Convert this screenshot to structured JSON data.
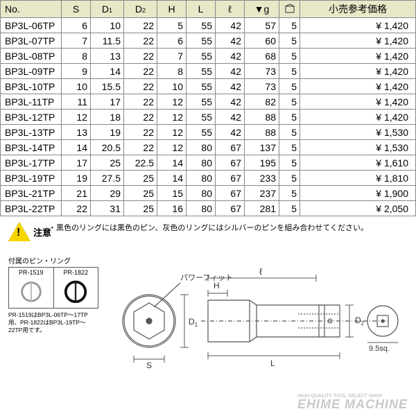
{
  "table": {
    "headers": [
      "No.",
      "S",
      "D1",
      "D2",
      "H",
      "L",
      "ℓ",
      "▼g",
      "pkg",
      "小売参考価格"
    ],
    "rows": [
      [
        "BP3L-06TP",
        "6",
        "10",
        "22",
        "5",
        "55",
        "42",
        "57",
        "5",
        "¥  1,420"
      ],
      [
        "BP3L-07TP",
        "7",
        "11.5",
        "22",
        "6",
        "55",
        "42",
        "60",
        "5",
        "¥  1,420"
      ],
      [
        "BP3L-08TP",
        "8",
        "13",
        "22",
        "7",
        "55",
        "42",
        "68",
        "5",
        "¥  1,420"
      ],
      [
        "BP3L-09TP",
        "9",
        "14",
        "22",
        "8",
        "55",
        "42",
        "73",
        "5",
        "¥  1,420"
      ],
      [
        "BP3L-10TP",
        "10",
        "15.5",
        "22",
        "10",
        "55",
        "42",
        "73",
        "5",
        "¥  1,420"
      ],
      [
        "BP3L-11TP",
        "11",
        "17",
        "22",
        "12",
        "55",
        "42",
        "82",
        "5",
        "¥  1,420"
      ],
      [
        "BP3L-12TP",
        "12",
        "18",
        "22",
        "12",
        "55",
        "42",
        "88",
        "5",
        "¥  1,420"
      ],
      [
        "BP3L-13TP",
        "13",
        "19",
        "22",
        "12",
        "55",
        "42",
        "88",
        "5",
        "¥  1,530"
      ],
      [
        "BP3L-14TP",
        "14",
        "20.5",
        "22",
        "12",
        "80",
        "67",
        "137",
        "5",
        "¥  1,530"
      ],
      [
        "BP3L-17TP",
        "17",
        "25",
        "22.5",
        "14",
        "80",
        "67",
        "195",
        "5",
        "¥  1,610"
      ],
      [
        "BP3L-19TP",
        "19",
        "27.5",
        "25",
        "14",
        "80",
        "67",
        "233",
        "5",
        "¥  1,810"
      ],
      [
        "BP3L-21TP",
        "21",
        "29",
        "25",
        "15",
        "80",
        "67",
        "237",
        "5",
        "¥  1,900"
      ],
      [
        "BP3L-22TP",
        "22",
        "31",
        "25",
        "16",
        "80",
        "67",
        "281",
        "5",
        "¥  2,050"
      ]
    ]
  },
  "notes": {
    "warn_label": "注意",
    "body": "・黒色のリングには黒色のピン、灰色のリングにはシルバーのピンを組み合わせてください。",
    "pinring_title": "付属のピン・リング",
    "pr1": "PR-1519",
    "pr2": "PR-1822",
    "pinring_note": "PR-1519はBP3L-06TP～17TP用、PR-1822はBP3L-19TP～22TP用です。"
  },
  "diagram": {
    "power_fit": "パワーフィット",
    "S": "S",
    "D1": "D",
    "D1s": "1",
    "D2": "D",
    "D2s": "2",
    "H": "H",
    "L": "L",
    "l": "ℓ",
    "sq": "9.5sq."
  },
  "watermark": {
    "sm": "HIGH QUALITY TOOL SELECT SHOP",
    "lg": "EHIME MACHINE"
  },
  "colors": {
    "header_bg": "#e6e8c8",
    "border": "#888888",
    "diagram_line": "#555555",
    "wm": "#c8c8c8"
  }
}
